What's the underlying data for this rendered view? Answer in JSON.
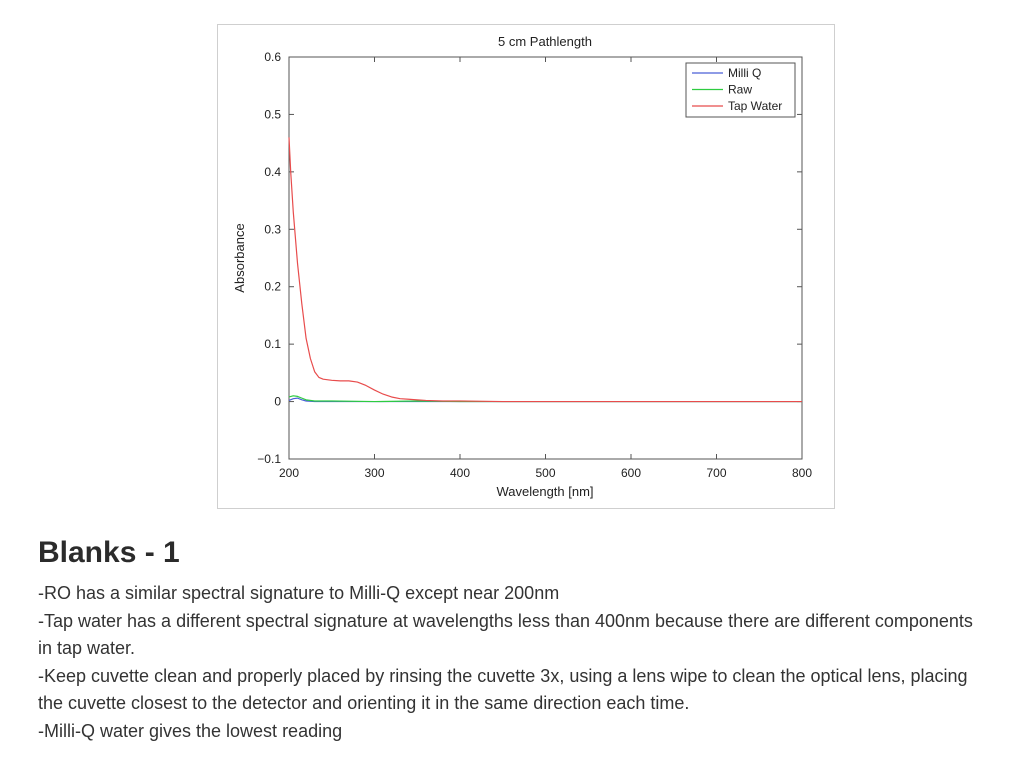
{
  "chart_data": {
    "type": "line",
    "title": "5 cm Pathlength",
    "xlabel": "Wavelength [nm]",
    "ylabel": "Absorbance",
    "xlim": [
      200,
      800
    ],
    "ylim": [
      -0.1,
      0.6
    ],
    "xticks": [
      200,
      300,
      400,
      500,
      600,
      700,
      800
    ],
    "xtick_labels": [
      "200",
      "300",
      "400",
      "500",
      "600",
      "700",
      "800"
    ],
    "yticks": [
      -0.1,
      0,
      0.1,
      0.2,
      0.3,
      0.4,
      0.5,
      0.6
    ],
    "ytick_labels": [
      "−0.1",
      "0",
      "0.1",
      "0.2",
      "0.3",
      "0.4",
      "0.5",
      "0.6"
    ],
    "grid": false,
    "legend": "top-right",
    "series": [
      {
        "name": "Milli Q",
        "color": "#4a5fd8",
        "x": [
          200,
          205,
          210,
          215,
          220,
          230,
          250,
          300,
          400,
          500,
          600,
          700,
          800
        ],
        "y": [
          0.002,
          0.005,
          0.006,
          0.003,
          0.001,
          0.0,
          0.0,
          0.0,
          0.0,
          0.0,
          0.0,
          0.0,
          0.0
        ]
      },
      {
        "name": "Raw",
        "color": "#2ecc40",
        "x": [
          200,
          205,
          210,
          215,
          220,
          230,
          250,
          300,
          350,
          400,
          500,
          600,
          700,
          800
        ],
        "y": [
          0.008,
          0.01,
          0.009,
          0.006,
          0.003,
          0.001,
          0.001,
          0.0,
          0.001,
          0.0,
          0.0,
          0.0,
          0.0,
          0.0
        ]
      },
      {
        "name": "Tap Water",
        "color": "#e84c4c",
        "x": [
          200,
          202,
          205,
          210,
          215,
          220,
          225,
          230,
          235,
          240,
          250,
          260,
          270,
          280,
          290,
          300,
          310,
          320,
          330,
          340,
          350,
          360,
          380,
          400,
          450,
          500,
          600,
          700,
          800
        ],
        "y": [
          0.46,
          0.4,
          0.33,
          0.24,
          0.17,
          0.11,
          0.075,
          0.052,
          0.042,
          0.039,
          0.037,
          0.036,
          0.036,
          0.034,
          0.028,
          0.02,
          0.013,
          0.008,
          0.005,
          0.004,
          0.003,
          0.002,
          0.001,
          0.001,
          0.0,
          0.0,
          0.0,
          0.0,
          0.0
        ]
      }
    ]
  },
  "slide": {
    "heading": "Blanks - 1",
    "notes": [
      "-RO has a similar spectral signature to Milli-Q except near 200nm",
      "-Tap water has a different spectral signature at wavelengths less than 400nm because there are different components in tap water.",
      "-Keep cuvette clean and properly placed by rinsing the cuvette 3x, using a lens wipe to clean the optical lens, placing the cuvette closest to the detector and orienting it in the same direction each time.",
      "-Milli-Q water gives the lowest reading"
    ]
  }
}
